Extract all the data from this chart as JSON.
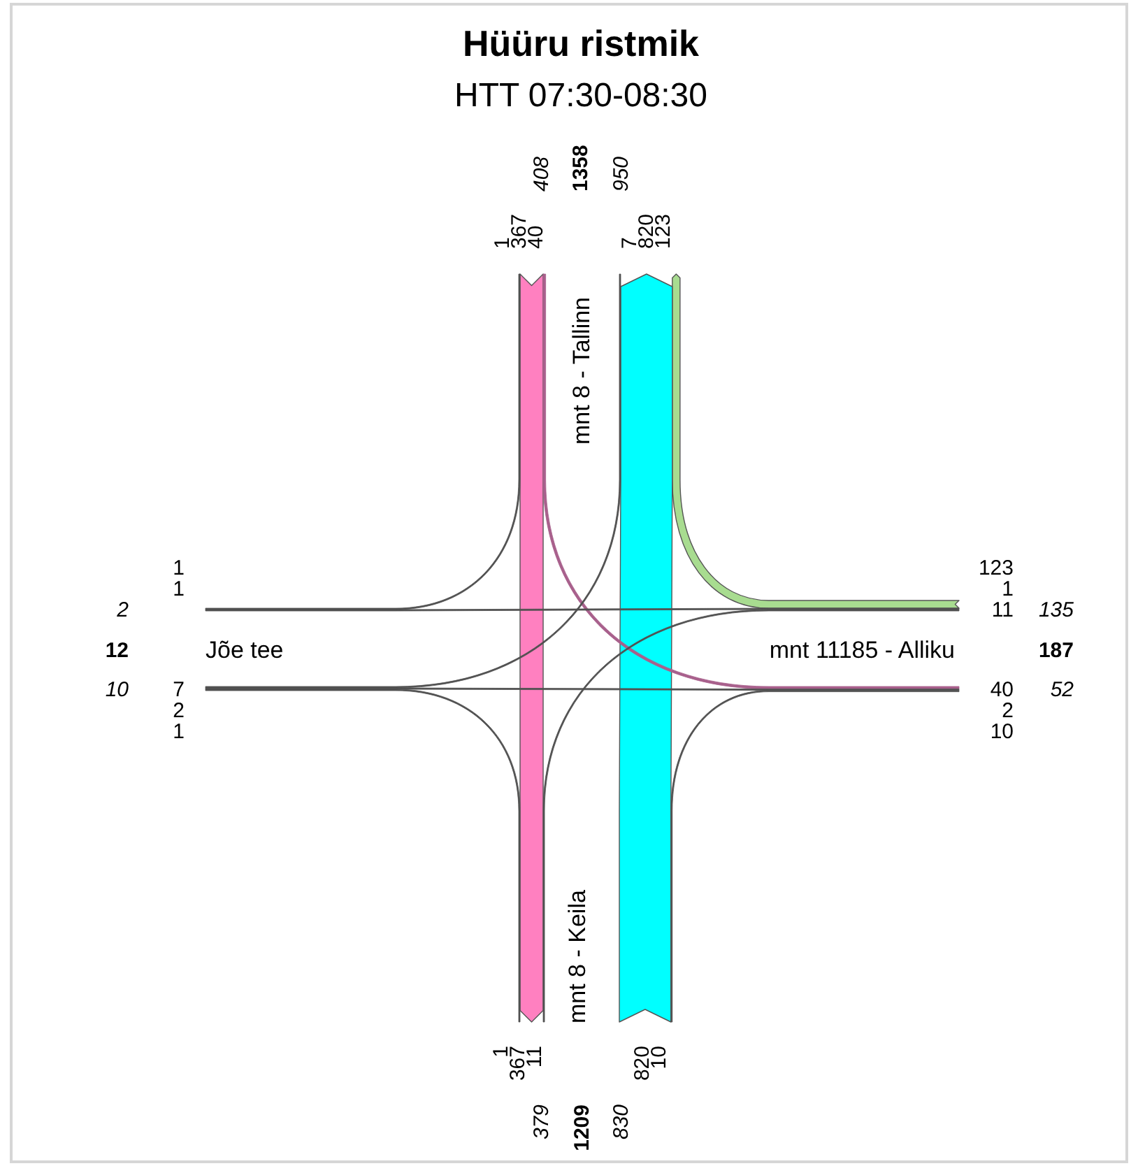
{
  "chart_data": {
    "type": "other",
    "title": "Hüüru ristmik",
    "subtitle": "HTT 07:30-08:30",
    "categories": [
      "mnt 8 - Tallinn",
      "mnt 11185 - Alliku",
      "mnt 8 - Keila",
      "Jõe tee"
    ],
    "series": [
      {
        "values": [
          null,
          40,
          367,
          1
        ],
        "colors": [
          null,
          "#a8608c",
          "#ff80c0",
          "#505050"
        ]
      },
      {
        "values": [
          null,
          123,
          820,
          7
        ]
      },
      {
        "values": [
          123,
          null,
          11,
          1
        ],
        "colors": [
          "#a8dc90",
          null,
          "#505050",
          "#505050"
        ]
      },
      {
        "values": [
          40,
          null,
          10,
          2
        ]
      },
      {
        "values": [
          820,
          10,
          null,
          null
        ],
        "colors": [
          "#00ffff",
          "#505050",
          null,
          null
        ]
      },
      {
        "values": [
          367,
          11,
          null,
          1
        ]
      },
      {
        "values": [
          7,
          2,
          1,
          null
        ],
        "colors": [
          "#505050",
          "#505050",
          "#505050",
          null
        ]
      },
      {
        "values": [
          1,
          1,
          null,
          null
        ]
      }
    ],
    "totals": [
      "1358",
      "187",
      "1209",
      "12"
    ],
    "annotations": [
      "408",
      "950",
      "135",
      "52",
      "830",
      "379",
      "10",
      "2"
    ],
    "data_labels": true
  }
}
